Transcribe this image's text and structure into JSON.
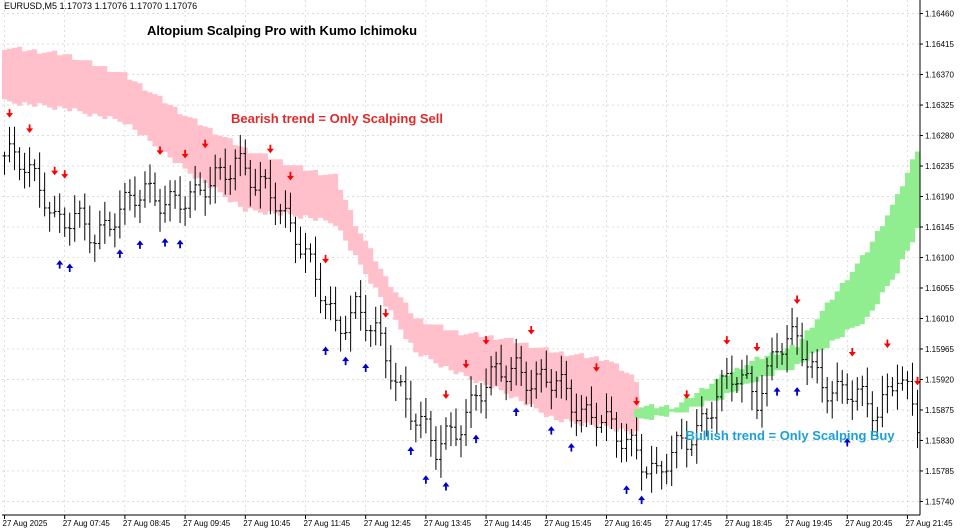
{
  "chart_data": {
    "type": "candlestick",
    "symbol": "EURUSD,M5",
    "ohlc_header": "1.17073 1.17076 1.17070 1.17076",
    "title": "Altopium Scalping Pro with Kumo Ichimoku",
    "annotations": {
      "bearish": "Bearish trend = Only Scalping Sell",
      "bullish": "Bullish trend = Only Scalping Buy"
    },
    "y_ticks": [
      "1.16460",
      "1.16415",
      "1.16370",
      "1.16325",
      "1.16280",
      "1.16235",
      "1.16190",
      "1.16145",
      "1.16100",
      "1.16055",
      "1.16010",
      "1.15965",
      "1.15920",
      "1.15875",
      "1.15830",
      "1.15785",
      "1.15740"
    ],
    "ylim": [
      1.1572,
      1.1648
    ],
    "x_ticks": [
      "27 Aug 2025",
      "27 Aug 07:45",
      "27 Aug 08:45",
      "27 Aug 09:45",
      "27 Aug 10:45",
      "27 Aug 11:45",
      "27 Aug 12:45",
      "27 Aug 13:45",
      "27 Aug 14:45",
      "27 Aug 15:45",
      "27 Aug 16:45",
      "27 Aug 17:45",
      "27 Aug 18:45",
      "27 Aug 19:45",
      "27 Aug 20:45",
      "27 Aug 21:45"
    ],
    "bars_per_tick": 12,
    "bar_count": 183,
    "close_anchors": [
      [
        0,
        1.1625
      ],
      [
        4,
        1.1623
      ],
      [
        8,
        1.162
      ],
      [
        10,
        1.1616
      ],
      [
        14,
        1.1615
      ],
      [
        18,
        1.1613
      ],
      [
        22,
        1.1617
      ],
      [
        28,
        1.1619
      ],
      [
        34,
        1.1619
      ],
      [
        38,
        1.1618
      ],
      [
        42,
        1.1622
      ],
      [
        46,
        1.1625
      ],
      [
        50,
        1.162
      ],
      [
        54,
        1.1619
      ],
      [
        58,
        1.1614
      ],
      [
        62,
        1.1606
      ],
      [
        66,
        1.16
      ],
      [
        70,
        1.1603
      ],
      [
        74,
        1.1598
      ],
      [
        78,
        1.1592
      ],
      [
        82,
        1.1587
      ],
      [
        86,
        1.1581
      ],
      [
        90,
        1.1585
      ],
      [
        94,
        1.159
      ],
      [
        98,
        1.1592
      ],
      [
        102,
        1.1594
      ],
      [
        106,
        1.1592
      ],
      [
        110,
        1.1591
      ],
      [
        114,
        1.1588
      ],
      [
        118,
        1.1587
      ],
      [
        122,
        1.1583
      ],
      [
        126,
        1.1582
      ],
      [
        130,
        1.1578
      ],
      [
        134,
        1.1581
      ],
      [
        138,
        1.1585
      ],
      [
        142,
        1.159
      ],
      [
        146,
        1.1592
      ],
      [
        150,
        1.159
      ],
      [
        154,
        1.1597
      ],
      [
        158,
        1.1597
      ],
      [
        162,
        1.1593
      ],
      [
        166,
        1.159
      ],
      [
        170,
        1.1589
      ],
      [
        174,
        1.1588
      ],
      [
        178,
        1.1593
      ],
      [
        182,
        1.1585
      ]
    ],
    "cloud_red": [
      [
        0,
        1.1641,
        1.1633
      ],
      [
        12,
        1.164,
        1.1632
      ],
      [
        24,
        1.1637,
        1.163
      ],
      [
        36,
        1.1631,
        1.1623
      ],
      [
        48,
        1.1626,
        1.1617
      ],
      [
        60,
        1.1623,
        1.1616
      ],
      [
        66,
        1.1622,
        1.1615
      ],
      [
        70,
        1.1615,
        1.161
      ],
      [
        76,
        1.1607,
        1.1603
      ],
      [
        82,
        1.1601,
        1.1596
      ],
      [
        90,
        1.1599,
        1.1593
      ],
      [
        100,
        1.1598,
        1.159
      ],
      [
        110,
        1.1596,
        1.1586
      ],
      [
        120,
        1.1595,
        1.1585
      ],
      [
        126,
        1.1592,
        1.1584
      ]
    ],
    "cloud_green": [
      [
        126,
        1.1588,
        1.1586
      ],
      [
        134,
        1.1588,
        1.1587
      ],
      [
        142,
        1.1592,
        1.1589
      ],
      [
        150,
        1.1595,
        1.1592
      ],
      [
        158,
        1.1597,
        1.1594
      ],
      [
        166,
        1.1605,
        1.1598
      ],
      [
        172,
        1.1611,
        1.1601
      ],
      [
        178,
        1.1619,
        1.1608
      ],
      [
        182,
        1.1626,
        1.1614
      ]
    ],
    "sell_arrow_bars": [
      1,
      5,
      10,
      13,
      32,
      38,
      42,
      55,
      59,
      67,
      79,
      92,
      96,
      100,
      110,
      123,
      132,
      142,
      150,
      157,
      165,
      176,
      184,
      190
    ],
    "buy_arrow_bars": [
      11,
      14,
      24,
      28,
      33,
      37,
      67,
      71,
      75,
      85,
      88,
      92,
      98,
      107,
      114,
      118,
      129,
      133,
      161,
      165,
      175
    ],
    "colors": {
      "candle": "#000000",
      "bear_cloud": "#ffc0cb",
      "bull_cloud": "#90ee90",
      "sell_arrow": "#ff0000",
      "buy_arrow": "#0000cd",
      "grid": "#c8c8c8",
      "axis": "#000000",
      "bear_text": "#e02a2a",
      "bull_text": "#1aa0d8"
    }
  }
}
